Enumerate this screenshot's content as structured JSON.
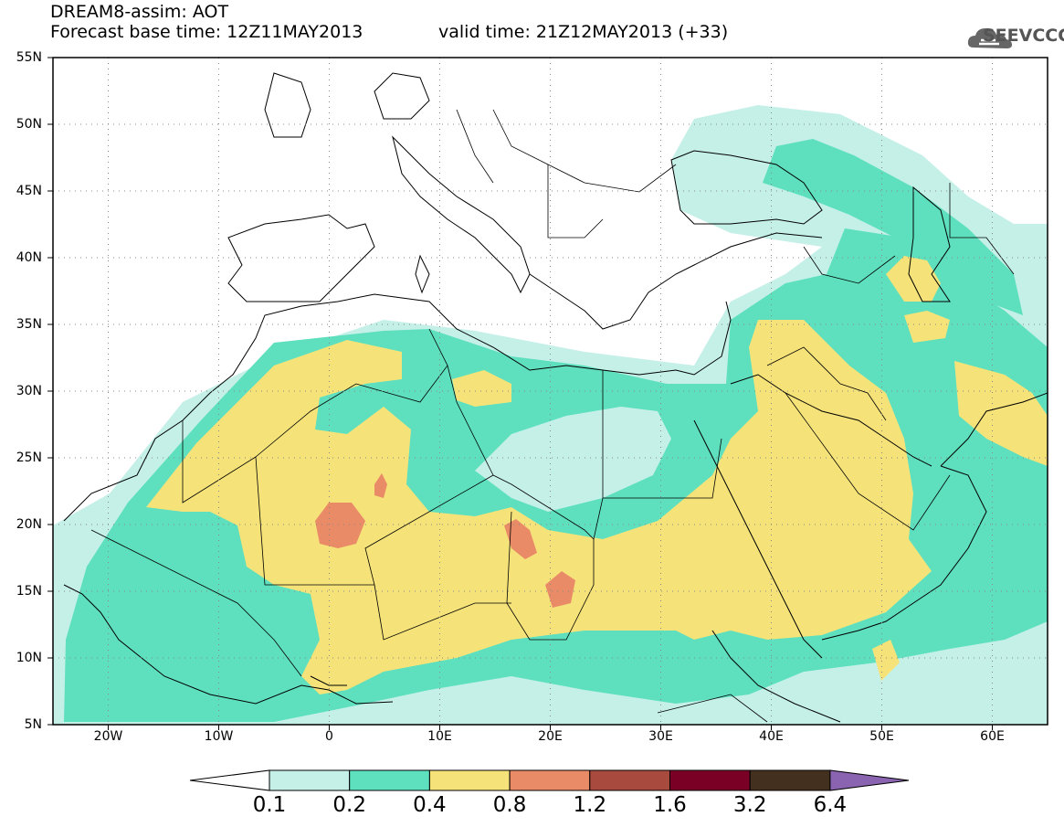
{
  "header": {
    "line1": "DREAM8-assim: AOT",
    "line2": "Forecast base time: 12Z11MAY2013",
    "valid": "valid time: 21Z12MAY2013 (+33)",
    "logo_text": "SEEVCCC",
    "logo_icon": "cloud-icon"
  },
  "axes": {
    "lat_labels": [
      "55N",
      "50N",
      "45N",
      "40N",
      "35N",
      "30N",
      "25N",
      "20N",
      "15N",
      "10N",
      "5N"
    ],
    "lon_labels": [
      "20W",
      "10W",
      "0",
      "10E",
      "20E",
      "30E",
      "40E",
      "50E",
      "60E"
    ],
    "lat_range": [
      5,
      55
    ],
    "lon_range": [
      -25,
      65
    ],
    "grid": "dotted"
  },
  "colorbar": {
    "labels": [
      "0.1",
      "0.2",
      "0.4",
      "0.8",
      "1.2",
      "1.6",
      "3.2",
      "6.4"
    ],
    "colors": [
      "#ffffff",
      "#c4f0e8",
      "#5ee0bf",
      "#f5e37a",
      "#ea8b68",
      "#a94a3f",
      "#7b0026",
      "#43301e",
      "#8a64b0"
    ]
  },
  "field_colors": {
    "level1": "#c4f0e8",
    "level2": "#5ee0bf",
    "level3": "#f5e37a",
    "level4": "#ea8b68"
  }
}
